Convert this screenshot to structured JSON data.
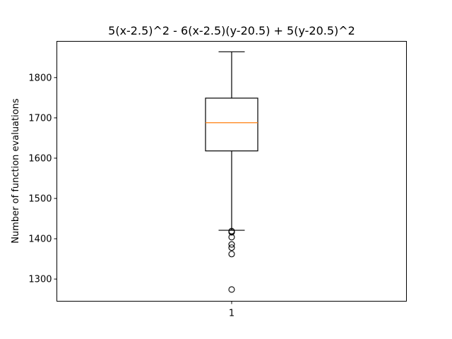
{
  "chart_data": {
    "type": "box",
    "title": "5(x-2.5)^2 - 6(x-2.5)(y-20.5) + 5(y-20.5)^2",
    "xlabel": "",
    "ylabel": "Number of function evaluations",
    "ylim": [
      1245,
      1890
    ],
    "yticks": [
      1300,
      1400,
      1500,
      1600,
      1700,
      1800
    ],
    "xticks": [
      "1"
    ],
    "grid": false,
    "boxes": [
      {
        "category": "1",
        "whisker_low": 1421,
        "q1": 1618,
        "median": 1688,
        "q3": 1749,
        "whisker_high": 1864,
        "outliers": [
          1419,
          1416,
          1404,
          1386,
          1378,
          1362,
          1274
        ]
      }
    ],
    "colors": {
      "box": "#000000",
      "median": "#ff7f0e",
      "outlier": "#000000"
    }
  }
}
